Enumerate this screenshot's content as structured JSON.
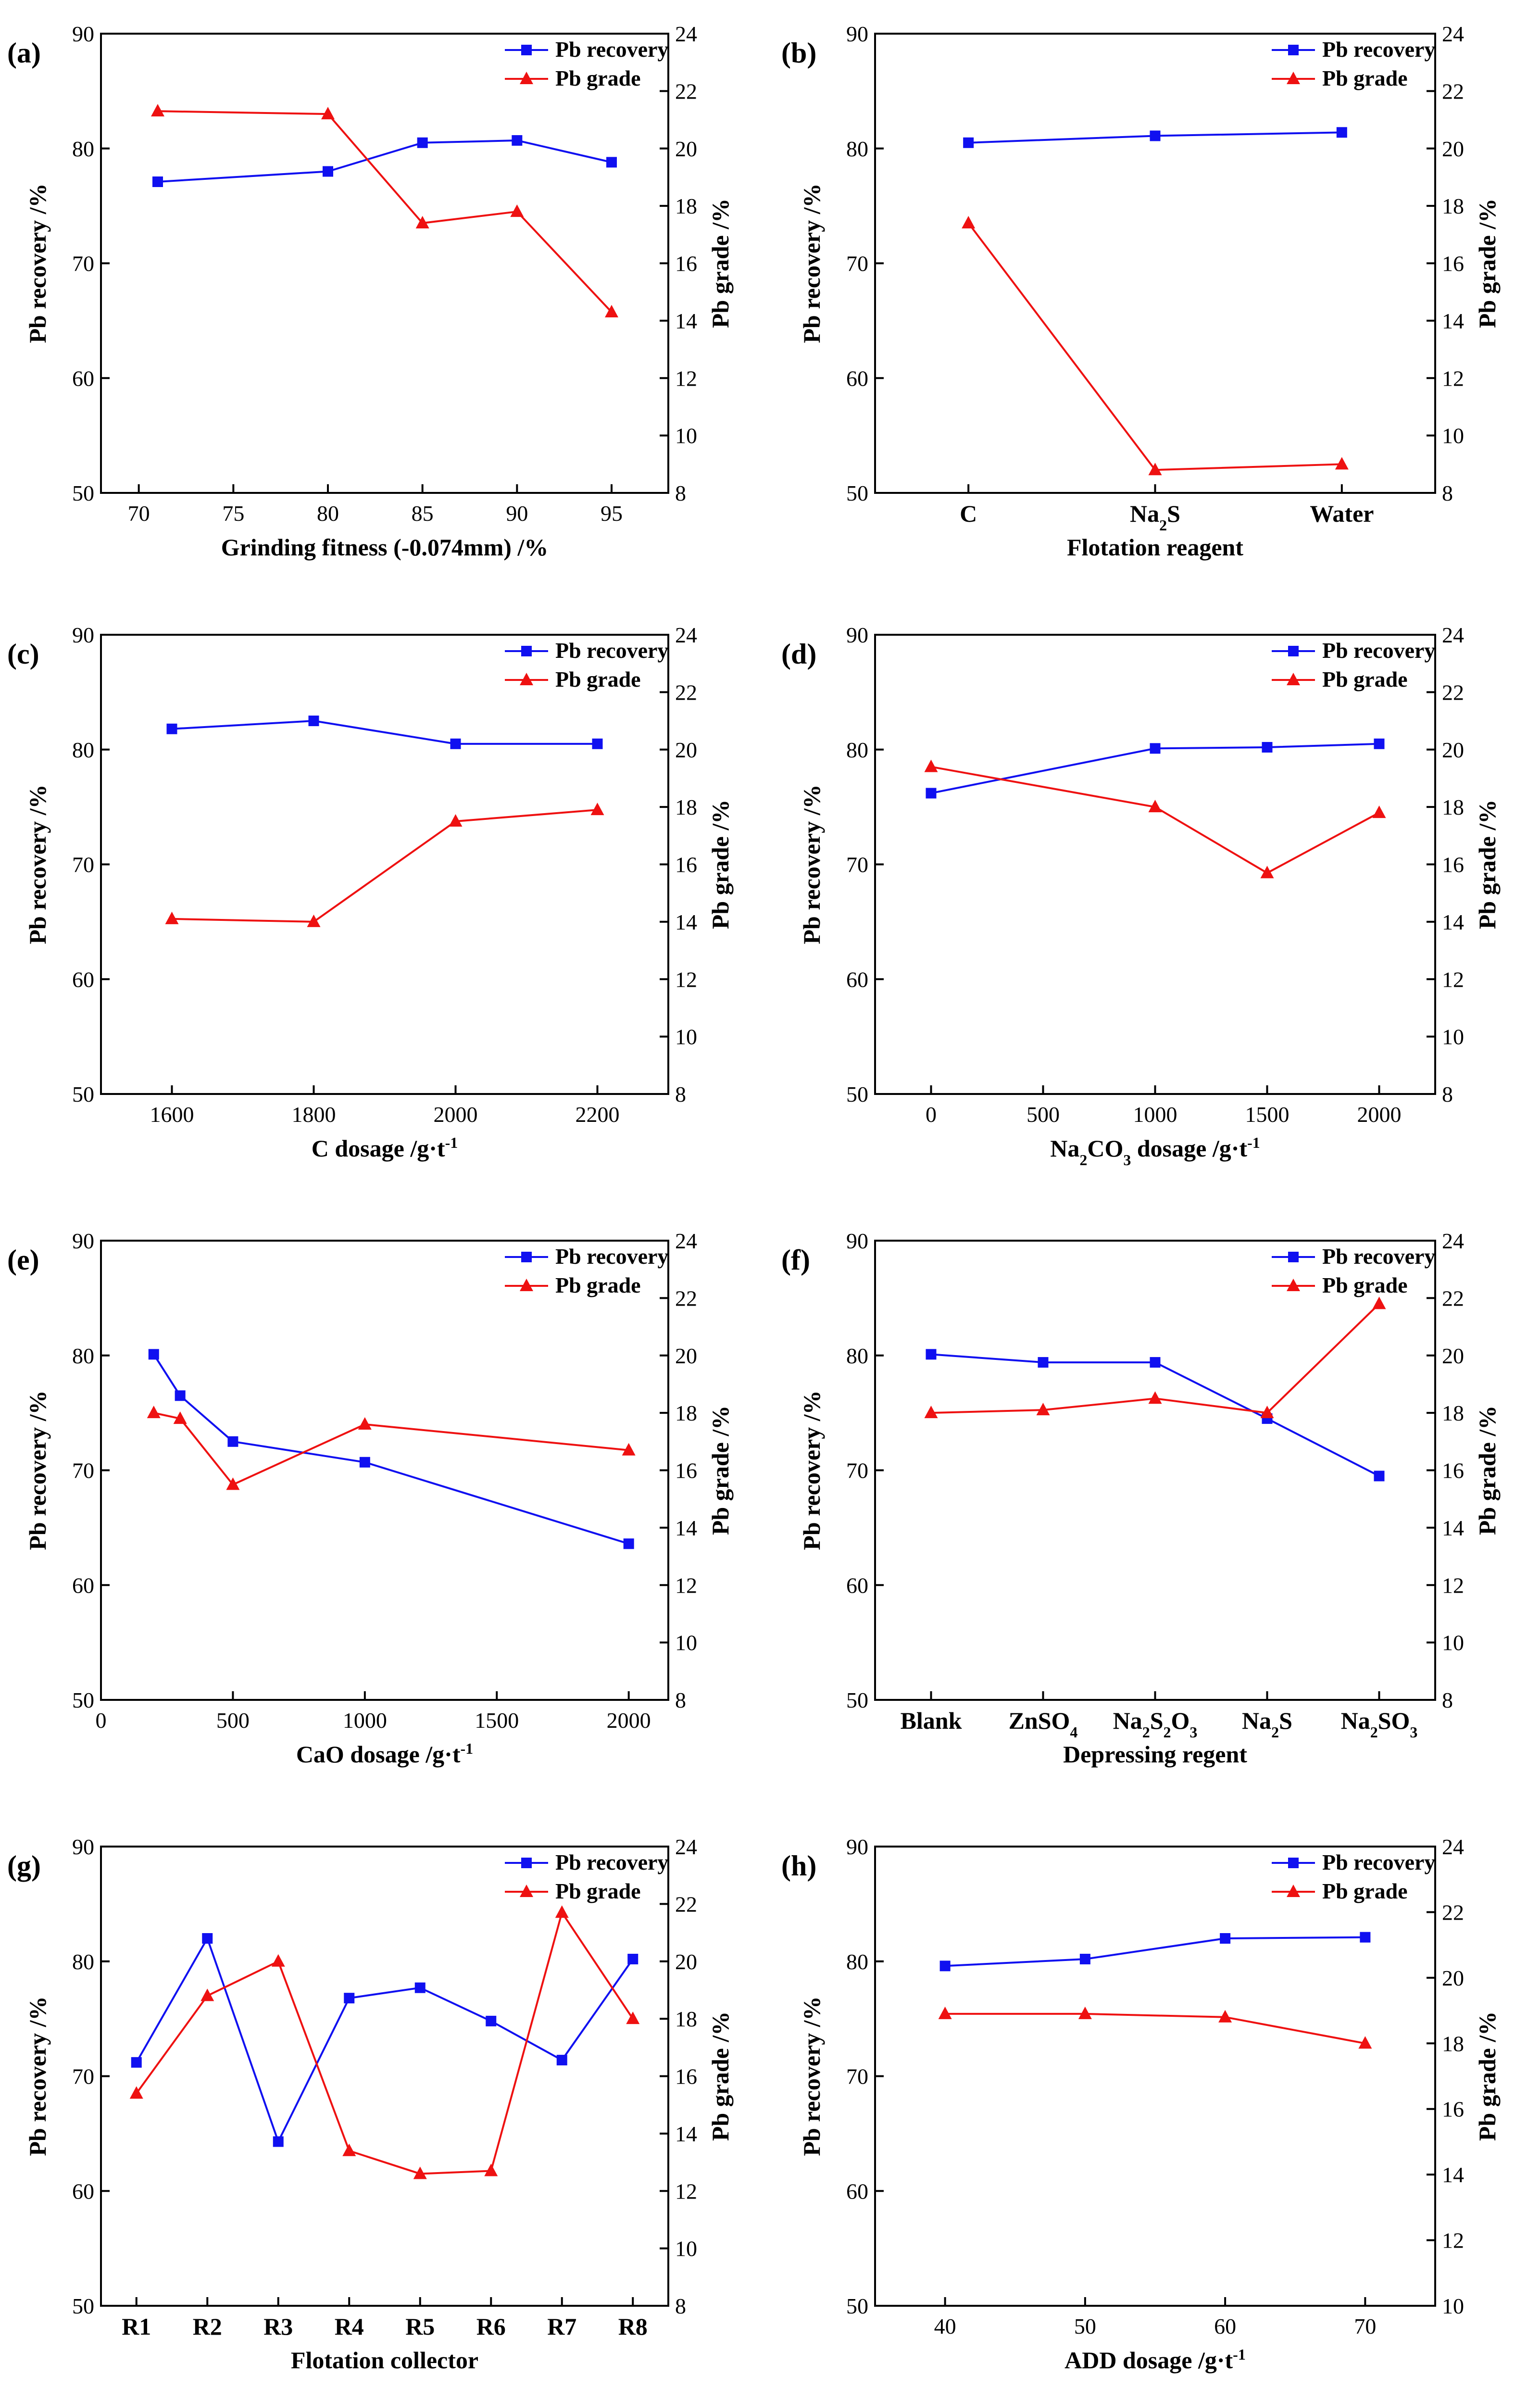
{
  "colors": {
    "recovery": "#1010f0",
    "grade": "#ee1111"
  },
  "legend": {
    "recovery": "Pb recovery",
    "grade": "Pb grade"
  },
  "chart_data": [
    {
      "type": "line",
      "label": "(a)",
      "xscale": "numeric",
      "xlabel": "Grinding fitness (-0.074mm) /%",
      "ylabel": "Pb recovery /%",
      "y2label": "Pb grade /%",
      "xlim": [
        68,
        98
      ],
      "xticks": [
        "70",
        "75",
        "80",
        "85",
        "90",
        "95"
      ],
      "ylim": [
        50,
        90
      ],
      "yticks": [
        "50",
        "60",
        "70",
        "80",
        "90"
      ],
      "y2lim": [
        8,
        24
      ],
      "y2ticks": [
        "8",
        "10",
        "12",
        "14",
        "16",
        "18",
        "20",
        "22",
        "24"
      ],
      "series": [
        {
          "name": "Pb recovery",
          "axis": "left",
          "marker": "square",
          "x": [
            71,
            80,
            85,
            90,
            95
          ],
          "values": [
            77.1,
            78.0,
            80.5,
            80.7,
            78.8
          ]
        },
        {
          "name": "Pb grade",
          "axis": "right",
          "marker": "triangle",
          "x": [
            71,
            80,
            85,
            90,
            95
          ],
          "values": [
            21.3,
            21.2,
            17.4,
            17.8,
            14.3
          ]
        }
      ]
    },
    {
      "type": "line",
      "label": "(b)",
      "xscale": "category",
      "xlabel": "Flotation reagent",
      "ylabel": "Pb recovery /%",
      "y2label": "Pb grade /%",
      "categories": [
        "C",
        "Na2S",
        "Water"
      ],
      "ylim": [
        50,
        90
      ],
      "yticks": [
        "50",
        "60",
        "70",
        "80",
        "90"
      ],
      "y2lim": [
        8,
        24
      ],
      "y2ticks": [
        "8",
        "10",
        "12",
        "14",
        "16",
        "18",
        "20",
        "22",
        "24"
      ],
      "series": [
        {
          "name": "Pb recovery",
          "axis": "left",
          "marker": "square",
          "values": [
            80.5,
            81.1,
            81.4
          ]
        },
        {
          "name": "Pb grade",
          "axis": "right",
          "marker": "triangle",
          "values": [
            17.4,
            8.8,
            9.0
          ]
        }
      ]
    },
    {
      "type": "line",
      "label": "(c)",
      "xscale": "numeric",
      "xlabel": "C  dosage /g·t-1",
      "ylabel": "Pb recovery /%",
      "y2label": "Pb grade /%",
      "xlim": [
        1500,
        2300
      ],
      "xticks": [
        "1600",
        "1800",
        "2000",
        "2200"
      ],
      "ylim": [
        50,
        90
      ],
      "yticks": [
        "50",
        "60",
        "70",
        "80",
        "90"
      ],
      "y2lim": [
        8,
        24
      ],
      "y2ticks": [
        "8",
        "10",
        "12",
        "14",
        "16",
        "18",
        "20",
        "22",
        "24"
      ],
      "series": [
        {
          "name": "Pb recovery",
          "axis": "left",
          "marker": "square",
          "x": [
            1600,
            1800,
            2000,
            2200
          ],
          "values": [
            81.8,
            82.5,
            80.5,
            80.5
          ]
        },
        {
          "name": "Pb grade",
          "axis": "right",
          "marker": "triangle",
          "x": [
            1600,
            1800,
            2000,
            2200
          ],
          "values": [
            14.1,
            14.0,
            17.5,
            17.9
          ]
        }
      ]
    },
    {
      "type": "line",
      "label": "(d)",
      "xscale": "numeric",
      "xlabel": "Na2CO3 dosage /g·t-1",
      "ylabel": "Pb recovery /%",
      "y2label": "Pb grade /%",
      "xlim": [
        -250,
        2250
      ],
      "xticks": [
        "0",
        "500",
        "1000",
        "1500",
        "2000"
      ],
      "ylim": [
        50,
        90
      ],
      "yticks": [
        "50",
        "60",
        "70",
        "80",
        "90"
      ],
      "y2lim": [
        8,
        24
      ],
      "y2ticks": [
        "8",
        "10",
        "12",
        "14",
        "16",
        "18",
        "20",
        "22",
        "24"
      ],
      "series": [
        {
          "name": "Pb recovery",
          "axis": "left",
          "marker": "square",
          "x": [
            0,
            1000,
            1500,
            2000
          ],
          "values": [
            76.2,
            80.1,
            80.2,
            80.5
          ]
        },
        {
          "name": "Pb grade",
          "axis": "right",
          "marker": "triangle",
          "x": [
            0,
            1000,
            1500,
            2000
          ],
          "values": [
            19.4,
            18.0,
            15.7,
            17.8
          ]
        }
      ]
    },
    {
      "type": "line",
      "label": "(e)",
      "xscale": "numeric",
      "xlabel": "CaO dosage /g·t-1",
      "ylabel": "Pb recovery /%",
      "y2label": "Pb grade /%",
      "xlim": [
        0,
        2150
      ],
      "xticks": [
        "0",
        "500",
        "1000",
        "1500",
        "2000"
      ],
      "ylim": [
        50,
        90
      ],
      "yticks": [
        "50",
        "60",
        "70",
        "80",
        "90"
      ],
      "y2lim": [
        8,
        24
      ],
      "y2ticks": [
        "8",
        "10",
        "12",
        "14",
        "16",
        "18",
        "20",
        "22",
        "24"
      ],
      "series": [
        {
          "name": "Pb recovery",
          "axis": "left",
          "marker": "square",
          "x": [
            200,
            300,
            500,
            1000,
            2000
          ],
          "values": [
            80.1,
            76.5,
            72.5,
            70.7,
            63.6
          ]
        },
        {
          "name": "Pb grade",
          "axis": "right",
          "marker": "triangle",
          "x": [
            200,
            300,
            500,
            1000,
            2000
          ],
          "values": [
            18.0,
            17.8,
            15.5,
            17.6,
            16.7
          ]
        }
      ]
    },
    {
      "type": "line",
      "label": "(f)",
      "xscale": "category",
      "xlabel": "Depressing regent",
      "ylabel": "Pb recovery /%",
      "y2label": "Pb grade /%",
      "categories": [
        "Blank",
        "ZnSO4",
        "Na2S2O3",
        "Na2S",
        "Na2SO3"
      ],
      "ylim": [
        50,
        90
      ],
      "yticks": [
        "50",
        "60",
        "70",
        "80",
        "90"
      ],
      "y2lim": [
        8,
        24
      ],
      "y2ticks": [
        "8",
        "10",
        "12",
        "14",
        "16",
        "18",
        "20",
        "22",
        "24"
      ],
      "series": [
        {
          "name": "Pb recovery",
          "axis": "left",
          "marker": "square",
          "values": [
            80.1,
            79.4,
            79.4,
            74.5,
            69.5
          ]
        },
        {
          "name": "Pb grade",
          "axis": "right",
          "marker": "triangle",
          "values": [
            18.0,
            18.1,
            18.5,
            18.0,
            21.8
          ]
        }
      ]
    },
    {
      "type": "line",
      "label": "(g)",
      "xscale": "category",
      "xlabel": "Flotation collector",
      "ylabel": "Pb recovery /%",
      "y2label": "Pb grade /%",
      "categories": [
        "R1",
        "R2",
        "R3",
        "R4",
        "R5",
        "R6",
        "R7",
        "R8"
      ],
      "ylim": [
        50,
        90
      ],
      "yticks": [
        "50",
        "60",
        "70",
        "80",
        "90"
      ],
      "y2lim": [
        8,
        24
      ],
      "y2ticks": [
        "8",
        "10",
        "12",
        "14",
        "16",
        "18",
        "20",
        "22",
        "24"
      ],
      "series": [
        {
          "name": "Pb recovery",
          "axis": "left",
          "marker": "square",
          "values": [
            71.2,
            82.0,
            64.3,
            76.8,
            77.7,
            74.8,
            71.4,
            80.2
          ]
        },
        {
          "name": "Pb grade",
          "axis": "right",
          "marker": "triangle",
          "values": [
            15.4,
            18.8,
            20.0,
            13.4,
            12.6,
            12.7,
            21.7,
            18.0
          ]
        }
      ]
    },
    {
      "type": "line",
      "label": "(h)",
      "xscale": "numeric",
      "xlabel": "ADD dosage /g·t-1",
      "ylabel": "Pb recovery /%",
      "y2label": "Pb grade /%",
      "xlim": [
        35,
        75
      ],
      "xticks": [
        "40",
        "50",
        "60",
        "70"
      ],
      "ylim": [
        50,
        90
      ],
      "yticks": [
        "50",
        "60",
        "70",
        "80",
        "90"
      ],
      "y2lim": [
        10,
        24
      ],
      "y2ticks": [
        "10",
        "12",
        "14",
        "16",
        "18",
        "20",
        "22",
        "24"
      ],
      "series": [
        {
          "name": "Pb recovery",
          "axis": "left",
          "marker": "square",
          "x": [
            40,
            50,
            60,
            70
          ],
          "values": [
            79.6,
            80.2,
            82.0,
            82.1
          ]
        },
        {
          "name": "Pb grade",
          "axis": "right",
          "marker": "triangle",
          "x": [
            40,
            50,
            60,
            70
          ],
          "values": [
            18.9,
            18.9,
            18.8,
            18.0
          ]
        }
      ]
    }
  ]
}
